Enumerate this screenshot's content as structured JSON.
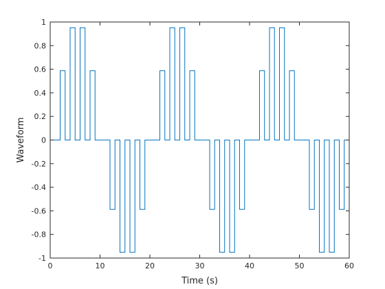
{
  "chart_data": {
    "type": "line",
    "title": "",
    "xlabel": "Time (s)",
    "ylabel": "Waveform",
    "xlim": [
      0,
      60
    ],
    "ylim": [
      -1,
      1
    ],
    "xticks": [
      0,
      10,
      20,
      30,
      40,
      50,
      60
    ],
    "yticks": [
      -1,
      -0.8,
      -0.6,
      -0.4,
      -0.2,
      0,
      0.2,
      0.4,
      0.6,
      0.8,
      1
    ],
    "grid": false,
    "legend": "none",
    "line_color": "#0072BD",
    "step_style": "pulse-train",
    "pulse_width": 1,
    "pulse_period": 2,
    "signal_period": 20,
    "pulse_amplitudes": [
      0,
      0.5878,
      0.9511,
      0.9511,
      0.5878,
      0,
      -0.5878,
      -0.9511,
      -0.9511,
      -0.5878
    ],
    "series": [
      {
        "name": "",
        "x": [
          0,
          2,
          2,
          3,
          3,
          4,
          4,
          5,
          5,
          6,
          6,
          7,
          7,
          8,
          8,
          9,
          9,
          12,
          12,
          13,
          13,
          14,
          14,
          15,
          15,
          16,
          16,
          17,
          17,
          18,
          18,
          19,
          19,
          22,
          22,
          23,
          23,
          24,
          24,
          25,
          25,
          26,
          26,
          27,
          27,
          28,
          28,
          29,
          29,
          32,
          32,
          33,
          33,
          34,
          34,
          35,
          35,
          36,
          36,
          37,
          37,
          38,
          38,
          39,
          39,
          42,
          42,
          43,
          43,
          44,
          44,
          45,
          45,
          46,
          46,
          47,
          47,
          48,
          48,
          49,
          49,
          52,
          52,
          53,
          53,
          54,
          54,
          55,
          55,
          56,
          56,
          57,
          57,
          58,
          58,
          59,
          59,
          60
        ],
        "y": [
          0,
          0,
          0.5878,
          0.5878,
          0,
          0,
          0.9511,
          0.9511,
          0,
          0,
          0.9511,
          0.9511,
          0,
          0,
          0.5878,
          0.5878,
          0,
          0,
          -0.5878,
          -0.5878,
          0,
          0,
          -0.9511,
          -0.9511,
          0,
          0,
          -0.9511,
          -0.9511,
          0,
          0,
          -0.5878,
          -0.5878,
          0,
          0,
          0.5878,
          0.5878,
          0,
          0,
          0.9511,
          0.9511,
          0,
          0,
          0.9511,
          0.9511,
          0,
          0,
          0.5878,
          0.5878,
          0,
          0,
          -0.5878,
          -0.5878,
          0,
          0,
          -0.9511,
          -0.9511,
          0,
          0,
          -0.9511,
          -0.9511,
          0,
          0,
          -0.5878,
          -0.5878,
          0,
          0,
          0.5878,
          0.5878,
          0,
          0,
          0.9511,
          0.9511,
          0,
          0,
          0.9511,
          0.9511,
          0,
          0,
          0.5878,
          0.5878,
          0,
          0,
          -0.5878,
          -0.5878,
          0,
          0,
          -0.9511,
          -0.9511,
          0,
          0,
          -0.9511,
          -0.9511,
          0,
          0,
          -0.5878,
          -0.5878,
          0,
          0
        ]
      }
    ]
  }
}
